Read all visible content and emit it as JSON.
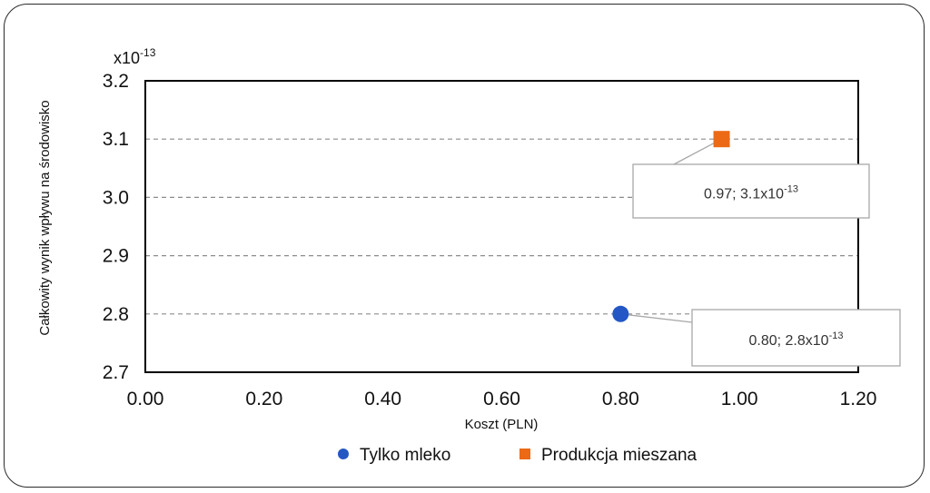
{
  "chart_data": {
    "type": "scatter",
    "xlabel": "Koszt (PLN)",
    "ylabel": "Całkowity wynik wpływu na środowisko",
    "y_multiplier": "x10-13",
    "xlim": [
      0.0,
      1.2
    ],
    "ylim": [
      2.7,
      3.2
    ],
    "x_ticks": [
      "0.00",
      "0.20",
      "0.40",
      "0.60",
      "0.80",
      "1.00",
      "1.20"
    ],
    "y_ticks": [
      "2.7",
      "2.8",
      "2.9",
      "3.0",
      "3.1",
      "3.2"
    ],
    "grid": "horizontal-dashed",
    "legend_position": "bottom",
    "series": [
      {
        "name": "Tylko mleko",
        "marker": "circle",
        "color": "#2457c5",
        "x": [
          0.8
        ],
        "y": [
          2.8
        ],
        "label_value": "0.80;  2.8x10",
        "label_exp": "-13"
      },
      {
        "name": "Produkcja mieszana",
        "marker": "square",
        "color": "#ec6a16",
        "x": [
          0.97
        ],
        "y": [
          3.1
        ],
        "label_value": "0.97;  3.1x10",
        "label_exp": "-13"
      }
    ]
  }
}
